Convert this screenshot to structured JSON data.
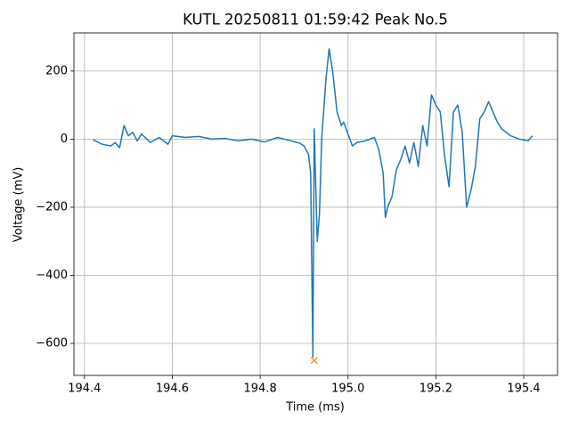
{
  "chart_data": {
    "type": "line",
    "title": "KUTL 20250811 01:59:42 Peak No.5",
    "x_label": "Time (ms)",
    "y_label": "Voltage (mV)",
    "x": [
      194.42,
      194.44,
      194.46,
      194.47,
      194.48,
      194.49,
      194.5,
      194.51,
      194.52,
      194.53,
      194.55,
      194.57,
      194.59,
      194.6,
      194.63,
      194.66,
      194.69,
      194.72,
      194.75,
      194.78,
      194.81,
      194.84,
      194.87,
      194.89,
      194.9,
      194.91,
      194.915,
      194.92,
      194.923,
      194.93,
      194.935,
      194.94,
      194.95,
      194.957,
      194.965,
      194.975,
      194.985,
      194.99,
      195.0,
      195.01,
      195.02,
      195.04,
      195.06,
      195.07,
      195.08,
      195.085,
      195.09,
      195.1,
      195.11,
      195.12,
      195.13,
      195.14,
      195.15,
      195.16,
      195.17,
      195.18,
      195.19,
      195.2,
      195.21,
      195.22,
      195.23,
      195.24,
      195.25,
      195.26,
      195.27,
      195.28,
      195.29,
      195.3,
      195.31,
      195.32,
      195.33,
      195.34,
      195.35,
      195.37,
      195.39,
      195.41,
      195.42
    ],
    "series": [
      {
        "color": "#1f77b4",
        "values": [
          -2,
          -15,
          -20,
          -10,
          -25,
          40,
          10,
          20,
          -5,
          15,
          -10,
          5,
          -15,
          10,
          5,
          8,
          0,
          2,
          -5,
          0,
          -8,
          5,
          -5,
          -12,
          -20,
          -45,
          -100,
          -640,
          30,
          -300,
          -220,
          0,
          180,
          265,
          200,
          80,
          40,
          50,
          15,
          -20,
          -10,
          -5,
          5,
          -30,
          -100,
          -230,
          -200,
          -170,
          -90,
          -60,
          -20,
          -70,
          -10,
          -80,
          40,
          -20,
          130,
          100,
          80,
          -50,
          -140,
          80,
          100,
          20,
          -200,
          -150,
          -80,
          60,
          80,
          110,
          80,
          50,
          30,
          10,
          0,
          -5,
          10
        ]
      }
    ],
    "peak": {
      "x": 194.923,
      "y": -650,
      "color": "#ff7f0e"
    },
    "xlim": [
      194.376,
      195.477
    ],
    "ylim": [
      -694,
      312
    ],
    "xticks": [
      194.4,
      194.6,
      194.8,
      {
        "value": 195.0,
        "label": "195.0"
      },
      195.2,
      195.4
    ],
    "yticks": [
      {
        "value": -600,
        "label": "−600"
      },
      {
        "value": -400,
        "label": "−400"
      },
      {
        "value": -200,
        "label": "−200"
      },
      0,
      200
    ],
    "grid": true
  }
}
